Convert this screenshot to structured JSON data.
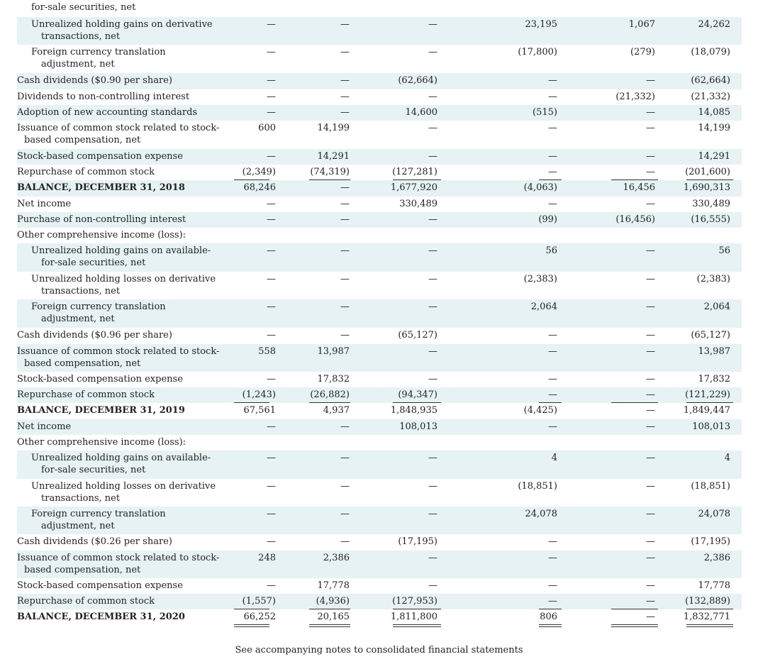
{
  "rows": [
    {
      "label": [
        "for-sale securities, net"
      ],
      "indent": 1,
      "shade": false,
      "vals": [
        "",
        "",
        "",
        "",
        "",
        ""
      ]
    },
    {
      "label": [
        "Unrealized holding gains on derivative",
        "transactions, net"
      ],
      "indent": 1,
      "shade": true,
      "vals": [
        "—",
        "—",
        "—",
        "23,195",
        "1,067",
        "24,262"
      ]
    },
    {
      "label": [
        "Foreign currency translation",
        "adjustment, net"
      ],
      "indent": 1,
      "shade": false,
      "vals": [
        "—",
        "—",
        "—",
        "(17,800)",
        "(279)",
        "(18,079)"
      ]
    },
    {
      "label": [
        "Cash dividends ($0.90 per share)"
      ],
      "indent": 0,
      "shade": true,
      "vals": [
        "—",
        "—",
        "(62,664)",
        "—",
        "—",
        "(62,664)"
      ]
    },
    {
      "label": [
        "Dividends to non-controlling interest"
      ],
      "indent": 0,
      "shade": false,
      "vals": [
        "—",
        "—",
        "—",
        "—",
        "(21,332)",
        "(21,332)"
      ]
    },
    {
      "label": [
        "Adoption of new accounting standards"
      ],
      "indent": 0,
      "shade": true,
      "vals": [
        "—",
        "—",
        "14,600",
        "(515)",
        "—",
        "14,085"
      ]
    },
    {
      "label": [
        "Issuance of common stock related to stock-",
        "based compensation, net"
      ],
      "indent": 0,
      "shade": false,
      "vals": [
        "600",
        "14,199",
        "—",
        "—",
        "—",
        "14,199"
      ]
    },
    {
      "label": [
        "Stock-based compensation expense"
      ],
      "indent": 0,
      "shade": true,
      "vals": [
        "—",
        "14,291",
        "—",
        "—",
        "—",
        "14,291"
      ]
    },
    {
      "label": [
        "Repurchase of common stock"
      ],
      "indent": 0,
      "shade": false,
      "vals": [
        "(2,349)",
        "(74,319)",
        "(127,281)",
        "—",
        "—",
        "(201,600)"
      ]
    },
    {
      "label": [
        "BALANCE, DECEMBER 31, 2018"
      ],
      "indent": 0,
      "shade": true,
      "bold": true,
      "vals": [
        "68,246",
        "—",
        "1,677,920",
        "(4,063)",
        "16,456",
        "1,690,313"
      ]
    },
    {
      "label": [
        "Net income"
      ],
      "indent": 0,
      "shade": false,
      "vals": [
        "—",
        "—",
        "330,489",
        "—",
        "—",
        "330,489"
      ]
    },
    {
      "label": [
        "Purchase of non-controlling interest"
      ],
      "indent": 0,
      "shade": true,
      "vals": [
        "—",
        "—",
        "—",
        "(99)",
        "(16,456)",
        "(16,555)"
      ]
    },
    {
      "label": [
        "Other comprehensive income (loss):"
      ],
      "indent": 0,
      "shade": false,
      "vals": [
        "",
        "",
        "",
        "",
        "",
        ""
      ]
    },
    {
      "label": [
        "Unrealized holding gains on available-",
        "for-sale securities, net"
      ],
      "indent": 1,
      "shade": true,
      "vals": [
        "—",
        "—",
        "—",
        "56",
        "—",
        "56"
      ]
    },
    {
      "label": [
        "Unrealized holding losses on derivative",
        "transactions, net"
      ],
      "indent": 1,
      "shade": false,
      "vals": [
        "—",
        "—",
        "—",
        "(2,383)",
        "—",
        "(2,383)"
      ]
    },
    {
      "label": [
        "Foreign currency translation",
        "adjustment, net"
      ],
      "indent": 1,
      "shade": true,
      "vals": [
        "—",
        "—",
        "—",
        "2,064",
        "—",
        "2,064"
      ]
    },
    {
      "label": [
        "Cash dividends ($0.96 per share)"
      ],
      "indent": 0,
      "shade": false,
      "vals": [
        "—",
        "—",
        "(65,127)",
        "—",
        "—",
        "(65,127)"
      ]
    },
    {
      "label": [
        "Issuance of common stock related to stock-",
        "based compensation, net"
      ],
      "indent": 0,
      "shade": true,
      "vals": [
        "558",
        "13,987",
        "—",
        "—",
        "—",
        "13,987"
      ]
    },
    {
      "label": [
        "Stock-based compensation expense"
      ],
      "indent": 0,
      "shade": false,
      "vals": [
        "—",
        "17,832",
        "—",
        "—",
        "—",
        "17,832"
      ]
    },
    {
      "label": [
        "Repurchase of common stock"
      ],
      "indent": 0,
      "shade": true,
      "vals": [
        "(1,243)",
        "(26,882)",
        "(94,347)",
        "—",
        "—",
        "(121,229)"
      ]
    },
    {
      "label": [
        "BALANCE, DECEMBER 31, 2019"
      ],
      "indent": 0,
      "shade": false,
      "bold": true,
      "vals": [
        "67,561",
        "4,937",
        "1,848,935",
        "(4,425)",
        "—",
        "1,849,447"
      ]
    },
    {
      "label": [
        "Net income"
      ],
      "indent": 0,
      "shade": true,
      "vals": [
        "—",
        "—",
        "108,013",
        "—",
        "—",
        "108,013"
      ]
    },
    {
      "label": [
        "Other comprehensive income (loss):"
      ],
      "indent": 0,
      "shade": false,
      "vals": [
        "",
        "",
        "",
        "",
        "",
        ""
      ]
    },
    {
      "label": [
        "Unrealized holding gains on available-",
        "for-sale securities, net"
      ],
      "indent": 1,
      "shade": true,
      "vals": [
        "—",
        "—",
        "—",
        "4",
        "—",
        "4"
      ]
    },
    {
      "label": [
        "Unrealized holding losses on derivative",
        "transactions, net"
      ],
      "indent": 1,
      "shade": false,
      "vals": [
        "—",
        "—",
        "—",
        "(18,851)",
        "—",
        "(18,851)"
      ]
    },
    {
      "label": [
        "Foreign currency translation",
        "adjustment, net"
      ],
      "indent": 1,
      "shade": true,
      "vals": [
        "—",
        "—",
        "—",
        "24,078",
        "—",
        "24,078"
      ]
    },
    {
      "label": [
        "Cash dividends ($0.26 per share)"
      ],
      "indent": 0,
      "shade": false,
      "vals": [
        "—",
        "—",
        "(17,195)",
        "—",
        "—",
        "(17,195)"
      ]
    },
    {
      "label": [
        "Issuance of common stock related to stock-",
        "based compensation, net"
      ],
      "indent": 0,
      "shade": true,
      "vals": [
        "248",
        "2,386",
        "—",
        "—",
        "—",
        "2,386"
      ]
    },
    {
      "label": [
        "Stock-based compensation expense"
      ],
      "indent": 0,
      "shade": false,
      "vals": [
        "—",
        "17,778",
        "—",
        "—",
        "—",
        "17,778"
      ]
    },
    {
      "label": [
        "Repurchase of common stock"
      ],
      "indent": 0,
      "shade": true,
      "vals": [
        "(1,557)",
        "(4,936)",
        "(127,953)",
        "—",
        "—",
        "(132,889)"
      ]
    },
    {
      "label": [
        "BALANCE, DECEMBER 31, 2020"
      ],
      "indent": 0,
      "shade": false,
      "bold": true,
      "vals": [
        "66,252",
        "20,165",
        "1,811,800",
        "806",
        "—",
        "1,832,771"
      ]
    }
  ],
  "footer": "See accompanying notes to consolidated financial statements"
}
